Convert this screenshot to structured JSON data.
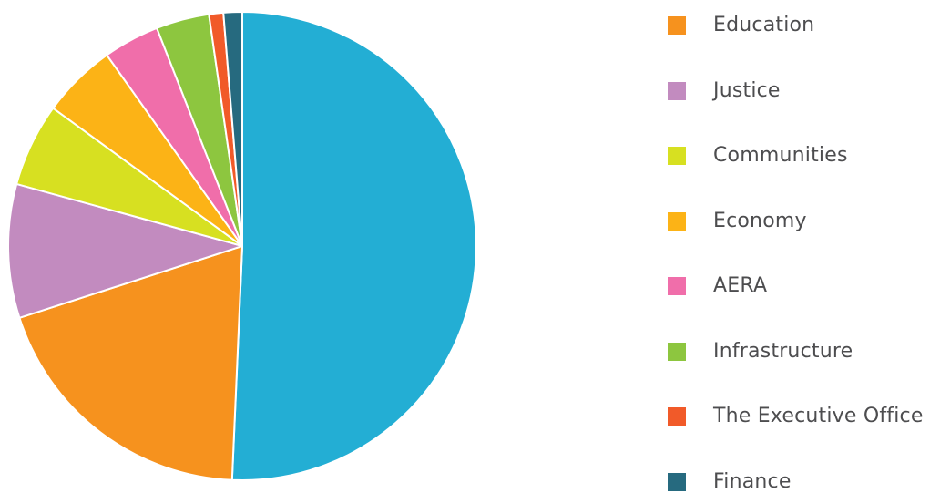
{
  "chart_data": {
    "type": "pie",
    "title": "",
    "legend_position": "right",
    "start": "top, clockwise",
    "slices": [
      {
        "label": "",
        "value": 51.1,
        "color": "#23AED4"
      },
      {
        "label": "Education",
        "value": 19.5,
        "color": "#F6921E"
      },
      {
        "label": "Justice",
        "value": 9.3,
        "color": "#C28BBF"
      },
      {
        "label": "Communities",
        "value": 5.8,
        "color": "#D7E021"
      },
      {
        "label": "Economy",
        "value": 5.2,
        "color": "#FCB316"
      },
      {
        "label": "AERA",
        "value": 3.9,
        "color": "#F06EAA"
      },
      {
        "label": "Infrastructure",
        "value": 3.7,
        "color": "#8DC63F"
      },
      {
        "label": "The Executive Office",
        "value": 1.0,
        "color": "#F15A29"
      },
      {
        "label": "Finance",
        "value": 1.3,
        "color": "#266A7F"
      }
    ]
  },
  "legend": {
    "items": [
      {
        "label": "Education",
        "color": "#F6921E"
      },
      {
        "label": "Justice",
        "color": "#C28BBF"
      },
      {
        "label": "Communities",
        "color": "#D7E021"
      },
      {
        "label": "Economy",
        "color": "#FCB316"
      },
      {
        "label": "AERA",
        "color": "#F06EAA"
      },
      {
        "label": "Infrastructure",
        "color": "#8DC63F"
      },
      {
        "label": "The Executive Office",
        "color": "#F15A29"
      },
      {
        "label": "Finance",
        "color": "#266A7F"
      }
    ]
  }
}
